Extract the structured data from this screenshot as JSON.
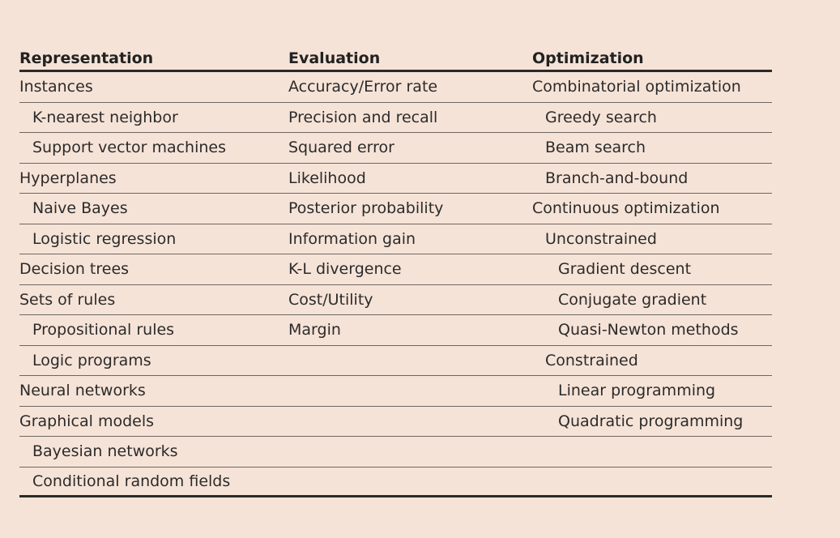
{
  "headers": {
    "representation": "Representation",
    "evaluation": "Evaluation",
    "optimization": "Optimization"
  },
  "representation": [
    {
      "text": "Instances",
      "indent": 0
    },
    {
      "text": "K-nearest neighbor",
      "indent": 1
    },
    {
      "text": "Support vector machines",
      "indent": 1
    },
    {
      "text": "Hyperplanes",
      "indent": 0
    },
    {
      "text": "Naive Bayes",
      "indent": 1
    },
    {
      "text": "Logistic regression",
      "indent": 1
    },
    {
      "text": "Decision trees",
      "indent": 0
    },
    {
      "text": "Sets of rules",
      "indent": 0
    },
    {
      "text": "Propositional rules",
      "indent": 1
    },
    {
      "text": "Logic programs",
      "indent": 1
    },
    {
      "text": "Neural networks",
      "indent": 0
    },
    {
      "text": "Graphical models",
      "indent": 0
    },
    {
      "text": "Bayesian networks",
      "indent": 1
    },
    {
      "text": "Conditional random fields",
      "indent": 1
    }
  ],
  "evaluation": [
    {
      "text": "Accuracy/Error rate",
      "indent": 0
    },
    {
      "text": "Precision and recall",
      "indent": 0
    },
    {
      "text": "Squared error",
      "indent": 0
    },
    {
      "text": "Likelihood",
      "indent": 0
    },
    {
      "text": "Posterior probability",
      "indent": 0
    },
    {
      "text": "Information gain",
      "indent": 0
    },
    {
      "text": "K-L divergence",
      "indent": 0
    },
    {
      "text": "Cost/Utility",
      "indent": 0
    },
    {
      "text": "Margin",
      "indent": 0
    }
  ],
  "optimization": [
    {
      "text": "Combinatorial optimization",
      "indent": 0
    },
    {
      "text": "Greedy search",
      "indent": 1
    },
    {
      "text": "Beam search",
      "indent": 1
    },
    {
      "text": "Branch-and-bound",
      "indent": 1
    },
    {
      "text": "Continuous optimization",
      "indent": 0
    },
    {
      "text": "Unconstrained",
      "indent": 1
    },
    {
      "text": "Gradient descent",
      "indent": 2
    },
    {
      "text": "Conjugate gradient",
      "indent": 2
    },
    {
      "text": "Quasi-Newton methods",
      "indent": 2
    },
    {
      "text": "Constrained",
      "indent": 1
    },
    {
      "text": "Linear programming",
      "indent": 2
    },
    {
      "text": "Quadratic programming",
      "indent": 2
    }
  ],
  "row_count": 14
}
